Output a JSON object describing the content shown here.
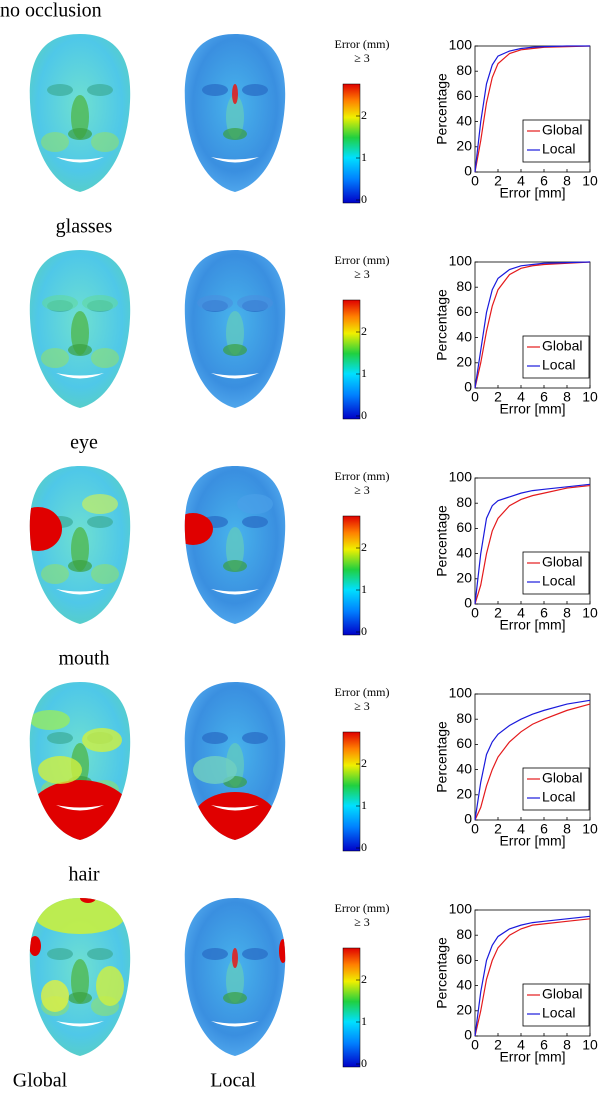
{
  "columns": [
    "Global",
    "Local"
  ],
  "rows": [
    {
      "label": "no occlusion",
      "colorbar": {
        "title": "Error (mm)",
        "ticks": [
          "0",
          "1",
          "2",
          "≥ 3"
        ]
      }
    },
    {
      "label": "glasses",
      "colorbar": {
        "title": "Error (mm)",
        "ticks": [
          "0",
          "1",
          "2",
          "≥ 3"
        ]
      }
    },
    {
      "label": "eye",
      "colorbar": {
        "title": "Error (mm)",
        "ticks": [
          "0",
          "1",
          "2",
          "≥ 3"
        ]
      }
    },
    {
      "label": "mouth",
      "colorbar": {
        "title": "Error (mm)",
        "ticks": [
          "0",
          "1",
          "2",
          "≥ 3"
        ]
      }
    },
    {
      "label": "hair",
      "colorbar": {
        "title": "Error (mm)",
        "ticks": [
          "0",
          "1",
          "2",
          "≥ 3"
        ]
      }
    }
  ],
  "chart_data": [
    {
      "type": "line",
      "xlabel": "Error [mm]",
      "ylabel": "Percentage",
      "x": [
        0,
        0.5,
        1,
        1.5,
        2,
        3,
        4,
        5,
        6,
        8,
        10
      ],
      "xlim": [
        0,
        10
      ],
      "ylim": [
        0,
        100
      ],
      "xticks": [
        0,
        2,
        4,
        6,
        8,
        10
      ],
      "yticks": [
        0,
        20,
        40,
        60,
        80,
        100
      ],
      "legend": "lower right",
      "series": [
        {
          "name": "Global",
          "color": "#e41a1c",
          "values": [
            0,
            25,
            55,
            75,
            86,
            94,
            97,
            98,
            99,
            99.5,
            100
          ]
        },
        {
          "name": "Local",
          "color": "#1a1adc",
          "values": [
            0,
            40,
            70,
            85,
            92,
            96,
            98,
            99,
            99.5,
            100,
            100
          ]
        }
      ]
    },
    {
      "type": "line",
      "xlabel": "Error [mm]",
      "ylabel": "Percentage",
      "x": [
        0,
        0.5,
        1,
        1.5,
        2,
        3,
        4,
        5,
        6,
        8,
        10
      ],
      "xlim": [
        0,
        10
      ],
      "ylim": [
        0,
        100
      ],
      "xticks": [
        0,
        2,
        4,
        6,
        8,
        10
      ],
      "yticks": [
        0,
        20,
        40,
        60,
        80,
        100
      ],
      "legend": "lower right",
      "series": [
        {
          "name": "Global",
          "color": "#e41a1c",
          "values": [
            0,
            20,
            45,
            65,
            78,
            90,
            95,
            97,
            98,
            99,
            100
          ]
        },
        {
          "name": "Local",
          "color": "#1a1adc",
          "values": [
            0,
            30,
            60,
            78,
            87,
            94,
            97,
            98,
            99,
            99.5,
            100
          ]
        }
      ]
    },
    {
      "type": "line",
      "xlabel": "Error [mm]",
      "ylabel": "Percentage",
      "x": [
        0,
        0.5,
        1,
        1.5,
        2,
        3,
        4,
        5,
        6,
        8,
        10
      ],
      "xlim": [
        0,
        10
      ],
      "ylim": [
        0,
        100
      ],
      "xticks": [
        0,
        2,
        4,
        6,
        8,
        10
      ],
      "yticks": [
        0,
        20,
        40,
        60,
        80,
        100
      ],
      "legend": "lower right",
      "series": [
        {
          "name": "Global",
          "color": "#e41a1c",
          "values": [
            0,
            15,
            40,
            58,
            68,
            78,
            83,
            86,
            88,
            92,
            94
          ]
        },
        {
          "name": "Local",
          "color": "#1a1adc",
          "values": [
            0,
            40,
            68,
            78,
            82,
            85,
            88,
            90,
            91,
            93,
            95
          ]
        }
      ]
    },
    {
      "type": "line",
      "xlabel": "Error [mm]",
      "ylabel": "Percentage",
      "x": [
        0,
        0.5,
        1,
        1.5,
        2,
        3,
        4,
        5,
        6,
        8,
        10
      ],
      "xlim": [
        0,
        10
      ],
      "ylim": [
        0,
        100
      ],
      "xticks": [
        0,
        2,
        4,
        6,
        8,
        10
      ],
      "yticks": [
        0,
        20,
        40,
        60,
        80,
        100
      ],
      "legend": "lower right",
      "series": [
        {
          "name": "Global",
          "color": "#e41a1c",
          "values": [
            0,
            10,
            27,
            40,
            50,
            62,
            70,
            76,
            80,
            87,
            92
          ]
        },
        {
          "name": "Local",
          "color": "#1a1adc",
          "values": [
            0,
            30,
            52,
            62,
            68,
            75,
            80,
            84,
            87,
            92,
            95
          ]
        }
      ]
    },
    {
      "type": "line",
      "xlabel": "Error [mm]",
      "ylabel": "Percentage",
      "x": [
        0,
        0.5,
        1,
        1.5,
        2,
        3,
        4,
        5,
        6,
        8,
        10
      ],
      "xlim": [
        0,
        10
      ],
      "ylim": [
        0,
        100
      ],
      "xticks": [
        0,
        2,
        4,
        6,
        8,
        10
      ],
      "yticks": [
        0,
        20,
        40,
        60,
        80,
        100
      ],
      "legend": "lower right",
      "series": [
        {
          "name": "Global",
          "color": "#e41a1c",
          "values": [
            0,
            20,
            45,
            60,
            70,
            80,
            85,
            88,
            89,
            91,
            93
          ]
        },
        {
          "name": "Local",
          "color": "#1a1adc",
          "values": [
            0,
            35,
            60,
            72,
            79,
            85,
            88,
            90,
            91,
            93,
            95
          ]
        }
      ]
    }
  ]
}
